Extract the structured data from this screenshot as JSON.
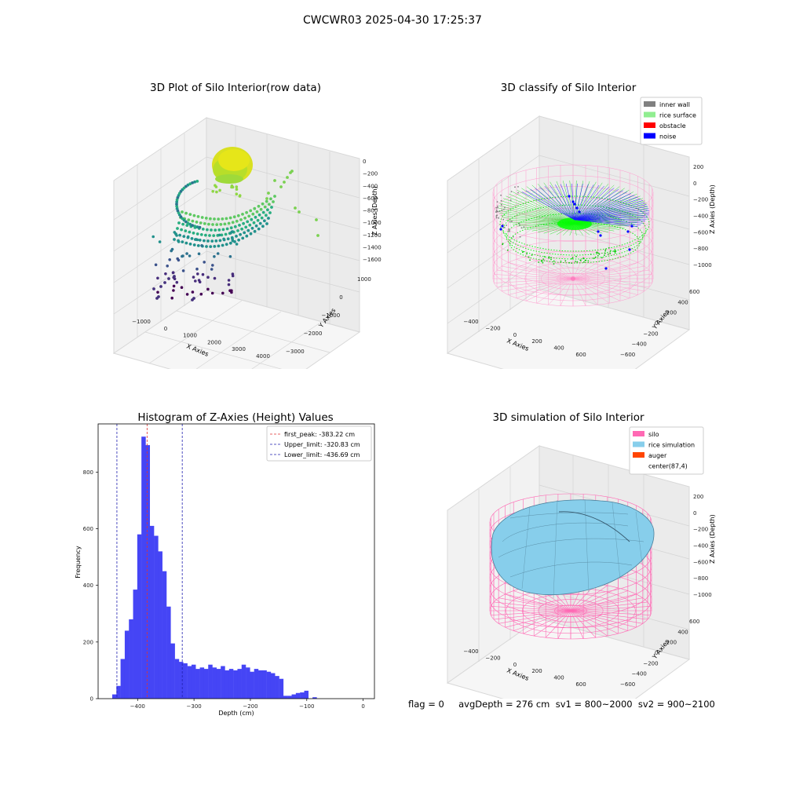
{
  "suptitle": "CWCWR03 2025-04-30 17:25:37",
  "status_line": "flag = 0     avgDepth = 276 cm  sv1 = 800~2000  sv2 = 900~2100",
  "chart_data": [
    {
      "type": "scatter3d",
      "title": "3D Plot of Silo Interior(row data)",
      "xlabel": "X Axies",
      "ylabel": "Y Axies",
      "zlabel": "Z Axies (Depth)",
      "xticks": [
        "−1000",
        "0",
        "1000",
        "2000",
        "3000",
        "4000"
      ],
      "yticks": [
        "1000",
        "0",
        "−1000",
        "−2000",
        "−3000"
      ],
      "zticks": [
        "0",
        "−200",
        "−400",
        "−600",
        "−800",
        "−1000",
        "−1200",
        "−1400",
        "−1600"
      ],
      "xlim": [
        -1500,
        4000
      ],
      "ylim": [
        -3300,
        1100
      ],
      "zlim": [
        -1700,
        100
      ],
      "colormap": "viridis",
      "grid": true
    },
    {
      "type": "scatter3d",
      "title": "3D classify of Silo Interior",
      "xlabel": "X Axies",
      "ylabel": "Y Axies",
      "zlabel": "Z Axies (Depth)",
      "xticks": [
        "−400",
        "−200",
        "0",
        "200",
        "400",
        "600"
      ],
      "yticks": [
        "600",
        "400",
        "200",
        "0",
        "−200",
        "−400",
        "−600"
      ],
      "zticks": [
        "200",
        "0",
        "−200",
        "−400",
        "−600",
        "−800",
        "−1000"
      ],
      "legend": [
        {
          "label": "inner wall",
          "color": "#808080"
        },
        {
          "label": "rice surface",
          "color": "#90ee90"
        },
        {
          "label": "obstacle",
          "color": "#ff0000"
        },
        {
          "label": "noise",
          "color": "#0000ff"
        }
      ],
      "legend_position": "top-right",
      "silo_wireframe_color": "#ff9ccf",
      "grid": true
    },
    {
      "type": "bar",
      "title": "Histogram of Z-Axies (Height) Values",
      "xlabel": "Depth (cm)",
      "ylabel": "Frequency",
      "xticks": [
        "−400",
        "−300",
        "−200",
        "−100",
        "0"
      ],
      "yticks": [
        "0",
        "200",
        "400",
        "600",
        "800"
      ],
      "xlim": [
        -470,
        20
      ],
      "ylim": [
        0,
        970
      ],
      "bin_start": -445,
      "bin_width": 7.4,
      "values": [
        15,
        45,
        140,
        240,
        280,
        385,
        580,
        925,
        895,
        610,
        575,
        520,
        450,
        325,
        195,
        140,
        130,
        125,
        115,
        120,
        105,
        110,
        105,
        120,
        110,
        105,
        115,
        100,
        105,
        100,
        105,
        120,
        110,
        95,
        105,
        100,
        100,
        95,
        90,
        80,
        70,
        10,
        10,
        15,
        20,
        22,
        28,
        0,
        5
      ],
      "bar_color": "#4545f5",
      "lines": [
        {
          "label": "first_peak: -383.22 cm",
          "x": -383.22,
          "color": "#e03030"
        },
        {
          "label": "Upper_limit: -320.83 cm",
          "x": -320.83,
          "color": "#2020b0"
        },
        {
          "label": "Lower_limit: -436.69 cm",
          "x": -436.69,
          "color": "#2020b0"
        }
      ],
      "legend_position": "top-right",
      "grid": false
    },
    {
      "type": "surface3d",
      "title": "3D simulation of Silo Interior",
      "xlabel": "X Axies",
      "ylabel": "Y Axies",
      "zlabel": "Z Axies (Depth)",
      "xticks": [
        "−400",
        "−200",
        "0",
        "200",
        "400",
        "600"
      ],
      "yticks": [
        "600",
        "400",
        "200",
        "0",
        "−200",
        "−400",
        "−600"
      ],
      "zticks": [
        "200",
        "0",
        "−200",
        "−400",
        "−600",
        "−800",
        "−1000"
      ],
      "legend": [
        {
          "label": "silo",
          "color": "#ff69b4"
        },
        {
          "label": "rice simulation",
          "color": "#87ceeb"
        },
        {
          "label": "auger",
          "color": "#ff4500"
        },
        {
          "label": "center(87,4)",
          "color": "#ffffff"
        }
      ],
      "legend_position": "top-right",
      "grid": true
    }
  ]
}
